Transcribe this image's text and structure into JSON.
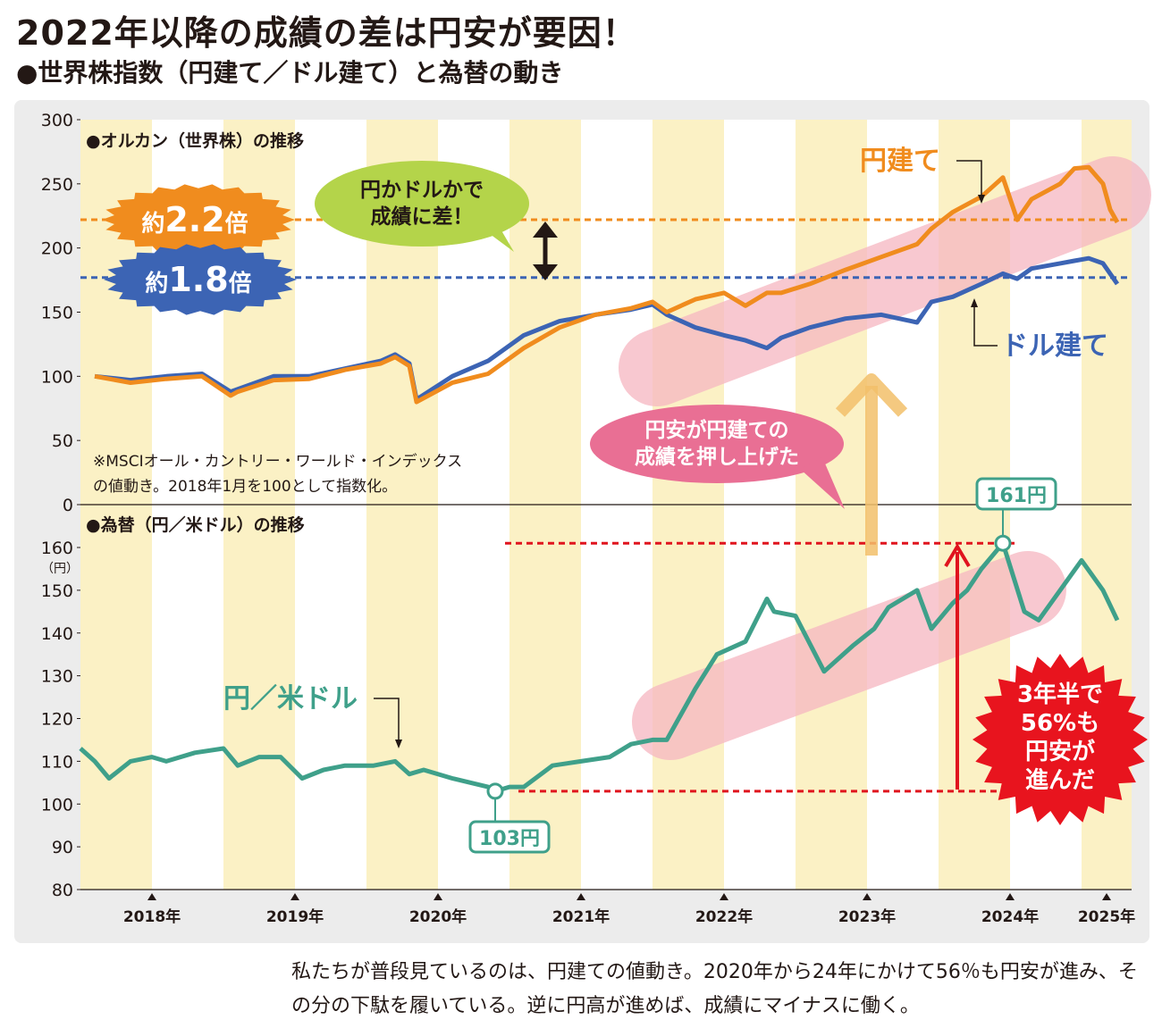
{
  "header": {
    "title": "2022年以降の成績の差は円安が要因！",
    "subtitle": "●世界株指数（円建て／ドル建て）と為替の動き"
  },
  "caption": "私たちが普段見ているのは、円建ての値動き。2020年から24年にかけて56％も円安が進み、その分の下駄を履いている。逆に円高が進めば、成績にマイナスに働く。",
  "colors": {
    "yen_line": "#f08c1e",
    "usd_line": "#3c64b4",
    "fx_line": "#3fa08a",
    "stripe": "#fbf1c5",
    "band": "#f5b6c0",
    "arrow_red": "#e0141e",
    "badge_red": "#e8141e"
  },
  "annotations": {
    "top_chart_label": "●オルカン（世界株）の推移",
    "bottom_chart_label": "●為替（円／米ドル）の推移",
    "ratio_yen_prefix": "約",
    "ratio_yen_value": "2.2",
    "ratio_yen_suffix": "倍",
    "ratio_usd_prefix": "約",
    "ratio_usd_value": "1.8",
    "ratio_usd_suffix": "倍",
    "bubble_diff_line1": "円かドルかで",
    "bubble_diff_line2": "成績に差！",
    "bubble_yen_line1": "円安が円建ての",
    "bubble_yen_line2": "成績を押し上げた",
    "note_line1": "※MSCIオール・カントリー・ワールド・インデックス",
    "note_line2": "の値動き。2018年1月を100として指数化。",
    "label_yen_series": "円建て",
    "label_usd_series": "ドル建て",
    "label_fx_series": "円／米ドル",
    "high_label": "161円",
    "low_label": "103円",
    "badge_line1": "3年半で",
    "badge_line2": "56%も",
    "badge_line3": "円安が",
    "badge_line4": "進んだ",
    "fx_unit": "（円）"
  },
  "chart_data": [
    {
      "type": "line",
      "title": "●オルカン（世界株）の推移",
      "ylim": [
        0,
        300
      ],
      "yticks": [
        "0",
        "50",
        "100",
        "150",
        "200",
        "250",
        "300"
      ],
      "x_labels": [
        "2018年",
        "2019年",
        "2020年",
        "2021年",
        "2022年",
        "2023年",
        "2024年",
        "2025年"
      ],
      "reference_lines": [
        222,
        177
      ],
      "series": [
        {
          "name": "円建て",
          "x": [
            2018.0,
            2018.25,
            2018.5,
            2018.75,
            2018.95,
            2019.0,
            2019.25,
            2019.5,
            2019.75,
            2020.0,
            2020.1,
            2020.2,
            2020.25,
            2020.5,
            2020.75,
            2021.0,
            2021.25,
            2021.5,
            2021.75,
            2021.9,
            2022.0,
            2022.2,
            2022.4,
            2022.55,
            2022.7,
            2022.8,
            2023.0,
            2023.25,
            2023.5,
            2023.75,
            2023.85,
            2024.0,
            2024.2,
            2024.35,
            2024.45,
            2024.55,
            2024.75,
            2024.85,
            2024.95,
            2025.05,
            2025.1,
            2025.15
          ],
          "values": [
            100,
            95,
            98,
            100,
            85,
            88,
            97,
            98,
            105,
            110,
            115,
            108,
            80,
            95,
            102,
            122,
            138,
            148,
            153,
            158,
            150,
            160,
            165,
            155,
            165,
            165,
            172,
            183,
            193,
            203,
            215,
            228,
            240,
            255,
            222,
            238,
            250,
            262,
            263,
            250,
            230,
            220
          ]
        },
        {
          "name": "ドル建て",
          "x": [
            2018.0,
            2018.25,
            2018.5,
            2018.75,
            2018.95,
            2019.0,
            2019.25,
            2019.5,
            2019.75,
            2020.0,
            2020.1,
            2020.2,
            2020.25,
            2020.5,
            2020.75,
            2021.0,
            2021.25,
            2021.5,
            2021.75,
            2021.9,
            2022.0,
            2022.2,
            2022.4,
            2022.55,
            2022.7,
            2022.8,
            2023.0,
            2023.25,
            2023.5,
            2023.75,
            2023.85,
            2024.0,
            2024.2,
            2024.35,
            2024.45,
            2024.55,
            2024.75,
            2024.85,
            2024.95,
            2025.05,
            2025.1,
            2025.15
          ],
          "values": [
            100,
            97,
            100,
            102,
            88,
            90,
            100,
            100,
            106,
            112,
            117,
            110,
            82,
            100,
            112,
            132,
            143,
            148,
            152,
            156,
            148,
            138,
            132,
            128,
            122,
            130,
            138,
            145,
            148,
            142,
            158,
            162,
            172,
            180,
            176,
            184,
            188,
            190,
            192,
            188,
            180,
            172
          ]
        }
      ]
    },
    {
      "type": "line",
      "title": "●為替（円／米ドル）の推移",
      "ylim": [
        80,
        160
      ],
      "yticks": [
        "80",
        "90",
        "100",
        "110",
        "120",
        "130",
        "140",
        "150",
        "160"
      ],
      "x_labels": [
        "2018年",
        "2019年",
        "2020年",
        "2021年",
        "2022年",
        "2023年",
        "2024年",
        "2025年"
      ],
      "reference_lines": [
        161,
        103
      ],
      "series": [
        {
          "name": "円／米ドル",
          "x": [
            2017.9,
            2018.0,
            2018.1,
            2018.25,
            2018.4,
            2018.5,
            2018.7,
            2018.9,
            2019.0,
            2019.15,
            2019.3,
            2019.45,
            2019.6,
            2019.75,
            2019.95,
            2020.1,
            2020.2,
            2020.3,
            2020.5,
            2020.75,
            2020.8,
            2020.9,
            2021.0,
            2021.2,
            2021.4,
            2021.6,
            2021.75,
            2021.9,
            2022.0,
            2022.2,
            2022.35,
            2022.55,
            2022.7,
            2022.75,
            2022.9,
            2023.1,
            2023.3,
            2023.45,
            2023.55,
            2023.75,
            2023.85,
            2024.0,
            2024.1,
            2024.2,
            2024.35,
            2024.5,
            2024.6,
            2024.75,
            2024.9,
            2025.05,
            2025.15
          ],
          "values": [
            113,
            110,
            106,
            110,
            111,
            110,
            112,
            113,
            109,
            111,
            111,
            106,
            108,
            109,
            109,
            110,
            107,
            108,
            106,
            104,
            103,
            104,
            104,
            109,
            110,
            111,
            114,
            115,
            115,
            127,
            135,
            138,
            148,
            145,
            144,
            131,
            137,
            141,
            146,
            150,
            141,
            147,
            150,
            155,
            161,
            145,
            143,
            150,
            157,
            150,
            143
          ]
        }
      ]
    }
  ]
}
